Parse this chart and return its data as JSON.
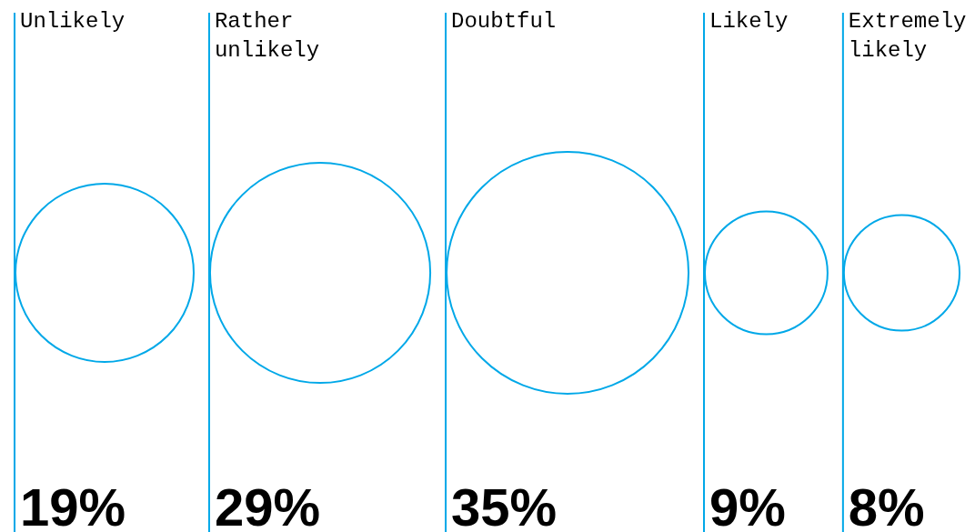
{
  "chart_data": {
    "type": "other",
    "categories": [
      "Unlikely",
      "Rather unlikely",
      "Doubtful",
      "Likely",
      "Extremely likely"
    ],
    "values": [
      19,
      29,
      35,
      9,
      8
    ],
    "value_labels": [
      "19%",
      "29%",
      "35%",
      "9%",
      "8%"
    ],
    "color": "#00a8e8"
  }
}
